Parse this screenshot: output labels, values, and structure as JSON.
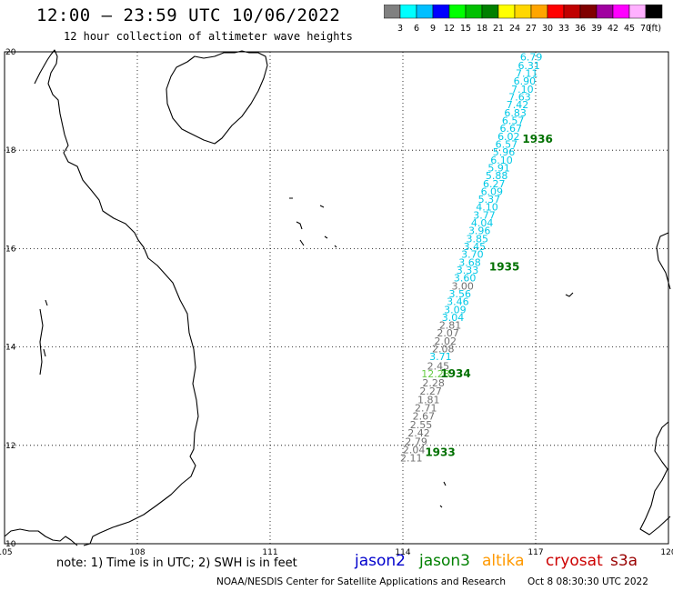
{
  "header": {
    "title": "12:00 – 23:59 UTC 10/06/2022",
    "subtitle": "12 hour collection of altimeter wave heights"
  },
  "colorbar": {
    "colors": [
      "#808080",
      "#00ffff",
      "#00bfff",
      "#0000ff",
      "#00ff00",
      "#00c000",
      "#008000",
      "#ffff00",
      "#ffd700",
      "#ffa500",
      "#ff0000",
      "#c00000",
      "#800000",
      "#a000a0",
      "#ff00ff",
      "#ffb0ff",
      "#000000"
    ],
    "labels": [
      "3",
      "6",
      "9",
      "12",
      "15",
      "18",
      "21",
      "24",
      "27",
      "30",
      "33",
      "36",
      "39",
      "42",
      "45",
      "70"
    ],
    "unit": "(ft)"
  },
  "map": {
    "lon_ticks": [
      "105",
      "108",
      "111",
      "114",
      "117",
      "120"
    ],
    "lat_ticks": [
      "20",
      "18",
      "16",
      "14",
      "12",
      "10"
    ],
    "lon_range": [
      105,
      120
    ],
    "lat_range": [
      10,
      20
    ]
  },
  "track": {
    "points": [
      {
        "lon": 116.9,
        "lat": 19.82,
        "swh": "6.79",
        "color": "#00c8e6"
      },
      {
        "lon": 116.85,
        "lat": 19.65,
        "swh": "6.31",
        "color": "#00c8e6"
      },
      {
        "lon": 116.8,
        "lat": 19.49,
        "swh": "7.11",
        "color": "#00c8e6"
      },
      {
        "lon": 116.75,
        "lat": 19.33,
        "swh": "6.90",
        "color": "#00c8e6"
      },
      {
        "lon": 116.7,
        "lat": 19.17,
        "swh": "7.10",
        "color": "#00c8e6"
      },
      {
        "lon": 116.64,
        "lat": 19.01,
        "swh": "7.63",
        "color": "#00c8e6"
      },
      {
        "lon": 116.59,
        "lat": 18.85,
        "swh": "7.42",
        "color": "#00c8e6"
      },
      {
        "lon": 116.54,
        "lat": 18.69,
        "swh": "6.83",
        "color": "#00c8e6"
      },
      {
        "lon": 116.49,
        "lat": 18.53,
        "swh": "6.57",
        "color": "#00c8e6"
      },
      {
        "lon": 116.44,
        "lat": 18.37,
        "swh": "6.67",
        "color": "#00c8e6"
      },
      {
        "lon": 116.39,
        "lat": 18.21,
        "swh": "6.02",
        "color": "#00c8e6"
      },
      {
        "lon": 116.34,
        "lat": 18.05,
        "swh": "6.57",
        "color": "#00c8e6"
      },
      {
        "lon": 116.28,
        "lat": 17.89,
        "swh": "5.96",
        "color": "#00c8e6"
      },
      {
        "lon": 116.23,
        "lat": 17.73,
        "swh": "6.10",
        "color": "#00c8e6"
      },
      {
        "lon": 116.17,
        "lat": 17.57,
        "swh": "5.91",
        "color": "#00c8e6"
      },
      {
        "lon": 116.12,
        "lat": 17.41,
        "swh": "5.88",
        "color": "#00c8e6"
      },
      {
        "lon": 116.06,
        "lat": 17.25,
        "swh": "6.27",
        "color": "#00c8e6"
      },
      {
        "lon": 116.01,
        "lat": 17.09,
        "swh": "6.09",
        "color": "#00c8e6"
      },
      {
        "lon": 115.95,
        "lat": 16.93,
        "swh": "5.37",
        "color": "#00c8e6"
      },
      {
        "lon": 115.9,
        "lat": 16.77,
        "swh": "4.10",
        "color": "#00c8e6"
      },
      {
        "lon": 115.84,
        "lat": 16.61,
        "swh": "3.77",
        "color": "#00c8e6"
      },
      {
        "lon": 115.79,
        "lat": 16.45,
        "swh": "4.04",
        "color": "#00c8e6"
      },
      {
        "lon": 115.73,
        "lat": 16.29,
        "swh": "3.96",
        "color": "#00c8e6"
      },
      {
        "lon": 115.68,
        "lat": 16.13,
        "swh": "3.85",
        "color": "#00c8e6"
      },
      {
        "lon": 115.62,
        "lat": 15.97,
        "swh": "3.45",
        "color": "#00c8e6"
      },
      {
        "lon": 115.57,
        "lat": 15.81,
        "swh": "3.70",
        "color": "#00c8e6"
      },
      {
        "lon": 115.51,
        "lat": 15.65,
        "swh": "3.68",
        "color": "#00c8e6"
      },
      {
        "lon": 115.46,
        "lat": 15.49,
        "swh": "3.33",
        "color": "#00c8e6"
      },
      {
        "lon": 115.4,
        "lat": 15.33,
        "swh": "3.60",
        "color": "#00c8e6"
      },
      {
        "lon": 115.35,
        "lat": 15.17,
        "swh": "3.00",
        "color": "#707070"
      },
      {
        "lon": 115.29,
        "lat": 15.01,
        "swh": "3.56",
        "color": "#00c8e6"
      },
      {
        "lon": 115.24,
        "lat": 14.85,
        "swh": "3.46",
        "color": "#00c8e6"
      },
      {
        "lon": 115.18,
        "lat": 14.69,
        "swh": "3.09",
        "color": "#00c8e6"
      },
      {
        "lon": 115.13,
        "lat": 14.53,
        "swh": "3.04",
        "color": "#00c8e6"
      },
      {
        "lon": 115.07,
        "lat": 14.37,
        "swh": "2.81",
        "color": "#707070"
      },
      {
        "lon": 115.02,
        "lat": 14.21,
        "swh": "2.07",
        "color": "#707070"
      },
      {
        "lon": 114.96,
        "lat": 14.05,
        "swh": "2.02",
        "color": "#707070"
      },
      {
        "lon": 114.91,
        "lat": 13.89,
        "swh": "2.08",
        "color": "#707070"
      },
      {
        "lon": 114.85,
        "lat": 13.73,
        "swh": "3.71",
        "color": "#00c8e6"
      },
      {
        "lon": 114.8,
        "lat": 13.54,
        "swh": "2.45",
        "color": "#707070"
      },
      {
        "lon": 114.74,
        "lat": 13.38,
        "swh": "12.28",
        "color": "#66cc44"
      },
      {
        "lon": 114.69,
        "lat": 13.2,
        "swh": "2.28",
        "color": "#707070"
      },
      {
        "lon": 114.63,
        "lat": 13.03,
        "swh": "2.27",
        "color": "#707070"
      },
      {
        "lon": 114.58,
        "lat": 12.86,
        "swh": "1.81",
        "color": "#707070"
      },
      {
        "lon": 114.52,
        "lat": 12.69,
        "swh": "2.71",
        "color": "#707070"
      },
      {
        "lon": 114.47,
        "lat": 12.52,
        "swh": "2.67",
        "color": "#707070"
      },
      {
        "lon": 114.41,
        "lat": 12.35,
        "swh": "2.55",
        "color": "#707070"
      },
      {
        "lon": 114.36,
        "lat": 12.18,
        "swh": "2.42",
        "color": "#707070"
      },
      {
        "lon": 114.3,
        "lat": 12.01,
        "swh": "2.79",
        "color": "#707070"
      },
      {
        "lon": 114.25,
        "lat": 11.84,
        "swh": "2.04",
        "color": "#707070"
      },
      {
        "lon": 114.19,
        "lat": 11.67,
        "swh": "2.11",
        "color": "#707070"
      }
    ],
    "time_labels": [
      {
        "lon": 116.7,
        "lat": 18.15,
        "text": "1936"
      },
      {
        "lon": 115.95,
        "lat": 15.55,
        "text": "1935"
      },
      {
        "lon": 114.85,
        "lat": 13.38,
        "text": "1934"
      },
      {
        "lon": 114.5,
        "lat": 11.78,
        "text": "1933"
      }
    ]
  },
  "footer": {
    "note": "note:  1) Time is in UTC;  2) SWH is in feet",
    "satellites": [
      {
        "name": "jason2",
        "color": "#0000cc"
      },
      {
        "name": "jason3",
        "color": "#008000"
      },
      {
        "name": "altika",
        "color": "#ff9900"
      },
      {
        "name": "cryosat",
        "color": "#cc0000"
      },
      {
        "name": "s3a",
        "color": "#990000"
      }
    ],
    "credit": "NOAA/NESDIS Center for Satellite Applications and Research",
    "generated": "Oct  8 08:30:30 UTC 2022"
  }
}
